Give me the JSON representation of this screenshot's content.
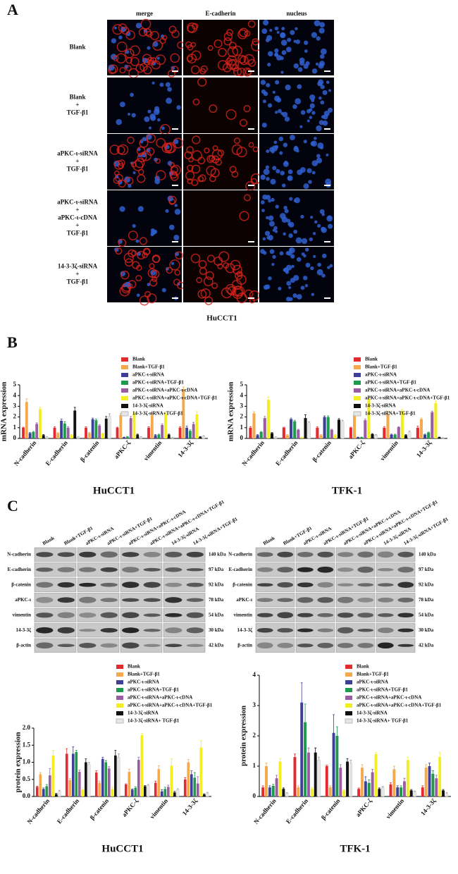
{
  "panel_a": {
    "label": "A",
    "columns": [
      "merge",
      "E-cadherin",
      "nucleus"
    ],
    "rows": [
      [
        "Blank"
      ],
      [
        "Blank",
        "+",
        "TGF-β1"
      ],
      [
        "aPKC-ι-siRNA",
        "+",
        "TGF-β1"
      ],
      [
        "aPKC-ι-siRNA",
        "+",
        "aPKC-ι-cDNA",
        "+",
        "TGF-β1"
      ],
      [
        "14-3-3ζ-siRNA",
        "+",
        "TGF-β1"
      ]
    ],
    "caption": "HuCCT1"
  },
  "panel_b": {
    "label": "B"
  },
  "panel_c": {
    "label": "C",
    "lanes": [
      "Blank",
      "Blank+TGF-β1",
      "aPKC-ι-siRNA",
      "aPKC-ι-siRNA+TGF-β1",
      "aPKC-ι-siRNA+aPKC-ι-cDNA",
      "aPKC-ι-siRNA+aPKC-ι-cDNA+TGF-β1",
      "14-3-3ζ-siRNA",
      "14-3-3ζ-siRNA+TGF-β1"
    ],
    "proteins": [
      "N-cadherin",
      "E-cadherin",
      "β-catenin",
      "aPKC-ι",
      "vimentin",
      "14-3-3ζ",
      "β-actin"
    ],
    "sizes": [
      "140 kDa",
      "97 kDa",
      "92 kDa",
      "78 kDa",
      "54 kDa",
      "30 kDa",
      "42 kDa"
    ]
  },
  "chart_data": [
    {
      "type": "bar",
      "x_title": "HuCCT1",
      "y_label": "mRNA expression",
      "categories": [
        "N-cadherin",
        "E-cadherin",
        "β-catenin",
        "aPKC-ζ",
        "vimentin",
        "14-3-3ζ"
      ],
      "ylim": [
        0,
        5
      ],
      "yticks": [
        0,
        1,
        2,
        3,
        4,
        5
      ],
      "series": [
        {
          "name": "Blank",
          "color": "#e52a2f",
          "values": [
            1.0,
            1.0,
            1.0,
            1.0,
            1.0,
            1.0
          ],
          "errors": [
            0.05,
            0.1,
            0.08,
            0.05,
            0.08,
            0.1
          ]
        },
        {
          "name": "Blank+TGF-β1",
          "color": "#f4a94c",
          "values": [
            3.4,
            0.5,
            0.5,
            2.2,
            2.15,
            4.6
          ],
          "errors": [
            0.3,
            0.05,
            0.05,
            0.15,
            0.2,
            0.2
          ]
        },
        {
          "name": "aPKC-ι-siRNA",
          "color": "#3e3f98",
          "values": [
            0.5,
            1.65,
            1.8,
            0.1,
            0.3,
            1.0
          ],
          "errors": [
            0.05,
            0.15,
            0.1,
            0.02,
            0.05,
            0.15
          ]
        },
        {
          "name": "aPKC-ι-siRNA+TGF-β1",
          "color": "#1d9a4c",
          "values": [
            0.6,
            1.4,
            1.7,
            0.15,
            0.35,
            0.7
          ],
          "errors": [
            0.05,
            0.15,
            0.1,
            0.03,
            0.05,
            0.1
          ]
        },
        {
          "name": "aPKC-ι-siRNA+aPKC-ι-cDNA",
          "color": "#9a5da2",
          "values": [
            1.35,
            1.0,
            1.2,
            1.9,
            1.25,
            1.35
          ],
          "errors": [
            0.1,
            0.1,
            0.1,
            0.15,
            0.1,
            0.15
          ]
        },
        {
          "name": "aPKC-ι-siRNA+aPKC-ι-cDNA+TGF-β1",
          "color": "#f3ee24",
          "values": [
            2.75,
            0.3,
            0.45,
            2.35,
            2.3,
            2.25
          ],
          "errors": [
            0.15,
            0.05,
            0.05,
            0.15,
            0.15,
            0.25
          ]
        },
        {
          "name": "14-3-3ζ-siRNA",
          "color": "#111111",
          "values": [
            0.3,
            2.6,
            1.85,
            0.35,
            0.35,
            0.15
          ],
          "errors": [
            0.05,
            0.3,
            0.2,
            0.05,
            0.05,
            0.03
          ]
        },
        {
          "name": "14-3-3ζ-siRNA+TGF-β1",
          "color": "#e6e6e6",
          "values": [
            0.1,
            0.1,
            2.1,
            0.1,
            0.05,
            0.2
          ],
          "errors": [
            0.05,
            0.05,
            0.2,
            0.05,
            0.05,
            0.05
          ]
        }
      ]
    },
    {
      "type": "bar",
      "x_title": "TFK-1",
      "y_label": "mRNA expression",
      "categories": [
        "N-cadherin",
        "E-cadherin",
        "β-catenin",
        "aPKC-ζ",
        "vimentin",
        "14-3-3ζ"
      ],
      "ylim": [
        0,
        5
      ],
      "yticks": [
        0,
        1,
        2,
        3,
        4,
        5
      ],
      "series": [
        {
          "name": "Blank",
          "color": "#e52a2f",
          "values": [
            1.0,
            1.0,
            1.0,
            1.0,
            1.0,
            1.0
          ],
          "errors": [
            0.1,
            0.05,
            0.1,
            0.05,
            0.1,
            0.15
          ]
        },
        {
          "name": "Blank+TGF-β1",
          "color": "#f4a94c",
          "values": [
            2.35,
            0.3,
            0.3,
            2.2,
            2.25,
            1.8
          ],
          "errors": [
            0.15,
            0.05,
            0.05,
            0.3,
            0.3,
            0.1
          ]
        },
        {
          "name": "aPKC-ι-siRNA",
          "color": "#3e3f98",
          "values": [
            0.3,
            1.8,
            2.0,
            0.1,
            0.35,
            0.35
          ],
          "errors": [
            0.05,
            0.1,
            0.1,
            0.02,
            0.05,
            0.05
          ]
        },
        {
          "name": "aPKC-ι-siRNA+TGF-β1",
          "color": "#1d9a4c",
          "values": [
            0.6,
            1.6,
            2.0,
            0.1,
            0.35,
            0.55
          ],
          "errors": [
            0.05,
            0.1,
            0.1,
            0.02,
            0.05,
            0.05
          ]
        },
        {
          "name": "aPKC-ι-siRNA+aPKC-ι-cDNA",
          "color": "#9a5da2",
          "values": [
            1.9,
            0.8,
            0.8,
            1.7,
            1.05,
            2.45
          ],
          "errors": [
            0.15,
            0.05,
            0.05,
            0.1,
            0.05,
            0.1
          ]
        },
        {
          "name": "aPKC-ι-siRNA+aPKC-ι-cDNA+TGF-β1",
          "color": "#f3ee24",
          "values": [
            3.6,
            0.1,
            0.3,
            3.7,
            2.55,
            3.3
          ],
          "errors": [
            0.25,
            0.03,
            0.05,
            0.25,
            0.15,
            0.2
          ]
        },
        {
          "name": "14-3-3ζ-siRNA",
          "color": "#111111",
          "values": [
            0.5,
            1.9,
            1.75,
            0.4,
            0.3,
            0.1
          ],
          "errors": [
            0.05,
            0.3,
            0.1,
            0.05,
            0.05,
            0.02
          ]
        },
        {
          "name": "14-3-3ζ-siRNA+TGF-β1",
          "color": "#e6e6e6",
          "values": [
            0.1,
            1.45,
            1.6,
            0.3,
            0.6,
            0.05
          ],
          "errors": [
            0.05,
            0.1,
            0.1,
            0.05,
            0.1,
            0.02
          ]
        }
      ]
    },
    {
      "type": "bar",
      "x_title": "HuCCT1",
      "y_label": "protein expression",
      "categories": [
        "N-cadherin",
        "E-cadherin",
        "β-catenin",
        "aPKC-ζ",
        "vimentin",
        "14-3-3ζ"
      ],
      "ylim": [
        0,
        2
      ],
      "yticks": [
        {
          "value": 0,
          "label": "0.0"
        },
        0.5,
        {
          "value": 1,
          "label": "1.0"
        },
        1.5,
        {
          "value": 2,
          "label": "2.0"
        }
      ],
      "series": [
        {
          "name": "Blank",
          "color": "#e52a2f",
          "values": [
            0.28,
            1.25,
            0.7,
            0.35,
            0.4,
            0.5
          ],
          "errors": [
            0.02,
            0.15,
            0.05,
            0.02,
            0.05,
            0.05
          ]
        },
        {
          "name": "Blank+TGF-β1",
          "color": "#f4a94c",
          "values": [
            0.65,
            0.48,
            0.4,
            0.72,
            0.8,
            1.0
          ],
          "errors": [
            0.05,
            0.05,
            0.05,
            0.08,
            0.1,
            0.08
          ]
        },
        {
          "name": "aPKC-ι-siRNA",
          "color": "#3e3f98",
          "values": [
            0.22,
            1.25,
            1.1,
            0.2,
            0.15,
            0.65
          ],
          "errors": [
            0.03,
            0.2,
            0.05,
            0.02,
            0.05,
            0.1
          ]
        },
        {
          "name": "aPKC-ι-siRNA+TGF-β1",
          "color": "#1d9a4c",
          "values": [
            0.3,
            1.3,
            1.0,
            0.25,
            0.22,
            0.55
          ],
          "errors": [
            0.05,
            0.05,
            0.05,
            0.03,
            0.05,
            0.15
          ]
        },
        {
          "name": "aPKC-ι-siRNA+aPKC-ι-cDNA",
          "color": "#9a5da2",
          "values": [
            0.62,
            0.72,
            0.82,
            1.07,
            0.28,
            0.38
          ],
          "errors": [
            0.2,
            0.05,
            0.05,
            0.08,
            0.05,
            0.2
          ]
        },
        {
          "name": "aPKC-ι-siRNA+aPKC-ι-cDNA+TGF-β1",
          "color": "#f3ee24",
          "values": [
            1.2,
            0.2,
            0.22,
            1.8,
            0.9,
            1.43
          ],
          "errors": [
            0.15,
            0.05,
            0.05,
            0.05,
            0.2,
            0.2
          ]
        },
        {
          "name": "14-3-3ζ-siRNA",
          "color": "#111111",
          "values": [
            0.07,
            1.0,
            1.2,
            0.3,
            0.12,
            0.06
          ],
          "errors": [
            0.02,
            0.1,
            0.15,
            0.02,
            0.03,
            0.02
          ]
        },
        {
          "name": "14-3-3ζ-siRNA+ TGF-β1",
          "color": "#e6e6e6",
          "values": [
            0.15,
            0.95,
            1.15,
            0.32,
            0.2,
            0.1
          ],
          "errors": [
            0.03,
            0.05,
            0.1,
            0.03,
            0.03,
            0.02
          ]
        }
      ]
    },
    {
      "type": "bar",
      "x_title": "TFK-1",
      "y_label": "protein expression",
      "categories": [
        "N-cadherin",
        "E-cadherin",
        "β-catenin",
        "aPKC-ζ",
        "vimentin",
        "14-3-3ζ"
      ],
      "ylim": [
        0,
        4
      ],
      "yticks": [
        0,
        1,
        2,
        3,
        4
      ],
      "series": [
        {
          "name": "Blank",
          "color": "#e52a2f",
          "values": [
            0.3,
            1.3,
            1.0,
            0.25,
            0.4,
            0.3
          ],
          "errors": [
            0.05,
            0.1,
            0.03,
            0.03,
            0.05,
            0.05
          ]
        },
        {
          "name": "Blank+TGF-β1",
          "color": "#f4a94c",
          "values": [
            1.0,
            0.3,
            0.3,
            0.95,
            0.9,
            0.95
          ],
          "errors": [
            0.1,
            0.05,
            0.05,
            0.1,
            0.1,
            0.1
          ]
        },
        {
          "name": "aPKC-ι-siRNA",
          "color": "#3e3f98",
          "values": [
            0.3,
            3.1,
            2.1,
            0.5,
            0.3,
            1.0
          ],
          "errors": [
            0.05,
            0.65,
            0.6,
            0.15,
            0.05,
            0.1
          ]
        },
        {
          "name": "aPKC-ι-siRNA+TGF-β1",
          "color": "#1d9a4c",
          "values": [
            0.35,
            2.45,
            2.0,
            0.45,
            0.3,
            0.75
          ],
          "errors": [
            0.05,
            0.6,
            0.3,
            0.1,
            0.05,
            0.1
          ]
        },
        {
          "name": "aPKC-ι-siRNA+aPKC-ι-cDNA",
          "color": "#9a5da2",
          "values": [
            0.6,
            1.45,
            0.95,
            0.8,
            0.5,
            0.6
          ],
          "errors": [
            0.1,
            0.15,
            0.1,
            0.1,
            0.1,
            0.1
          ]
        },
        {
          "name": "aPKC-ι-siRNA+aPKC-ι-cDNA+TGF-β1",
          "color": "#f3ee24",
          "values": [
            1.15,
            0.25,
            0.2,
            1.4,
            1.2,
            1.3
          ],
          "errors": [
            0.1,
            0.05,
            0.03,
            0.05,
            0.1,
            0.15
          ]
        },
        {
          "name": "14-3-3ζ-siRNA",
          "color": "#111111",
          "values": [
            0.25,
            1.45,
            1.15,
            0.25,
            0.2,
            0.2
          ],
          "errors": [
            0.03,
            0.15,
            0.1,
            0.03,
            0.03,
            0.03
          ]
        },
        {
          "name": "14-3-3ζ-siRNA+ TGF-β1",
          "color": "#e6e6e6",
          "values": [
            0.1,
            1.2,
            1.1,
            0.3,
            0.15,
            0.1
          ],
          "errors": [
            0.03,
            0.1,
            0.1,
            0.03,
            0.03,
            0.03
          ]
        }
      ]
    }
  ]
}
